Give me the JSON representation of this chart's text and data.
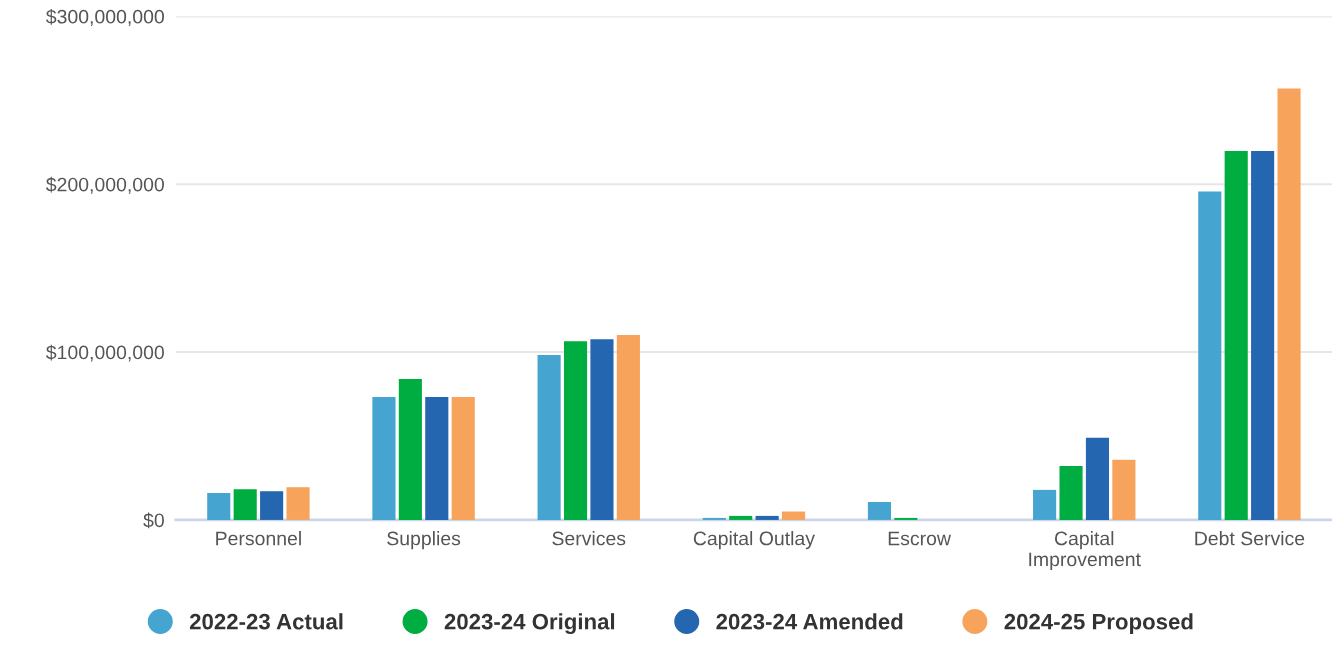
{
  "chart_data": {
    "type": "bar",
    "categories": [
      "Personnel",
      "Supplies",
      "Services",
      "Capital Outlay",
      "Escrow",
      "Capital\nImprovement",
      "Debt Service"
    ],
    "series": [
      {
        "name": "2022-23 Actual",
        "color": "#45a4d0",
        "values": [
          16100000,
          73200000,
          98200000,
          1200000,
          10700000,
          17900000,
          195600000
        ]
      },
      {
        "name": "2023-24 Original",
        "color": "#00ad41",
        "values": [
          18300000,
          83900000,
          106500000,
          2400000,
          1200000,
          32200000,
          219800000
        ]
      },
      {
        "name": "2023-24 Amended",
        "color": "#2566b0",
        "values": [
          17100000,
          73200000,
          107700000,
          2400000,
          0,
          48900000,
          219800000
        ]
      },
      {
        "name": "2024-25 Proposed",
        "color": "#f7a35c",
        "values": [
          19500000,
          73200000,
          110100000,
          5000000,
          0,
          35800000,
          257000000
        ]
      }
    ],
    "ylim": [
      0,
      300000000
    ],
    "yticks": [
      {
        "value": 0,
        "label": "$0"
      },
      {
        "value": 100000000,
        "label": "$100,000,000"
      },
      {
        "value": 200000000,
        "label": "$200,000,000"
      },
      {
        "value": 300000000,
        "label": "$300,000,000"
      }
    ],
    "grid": "y",
    "legend": "bottom",
    "marker": "circle"
  }
}
